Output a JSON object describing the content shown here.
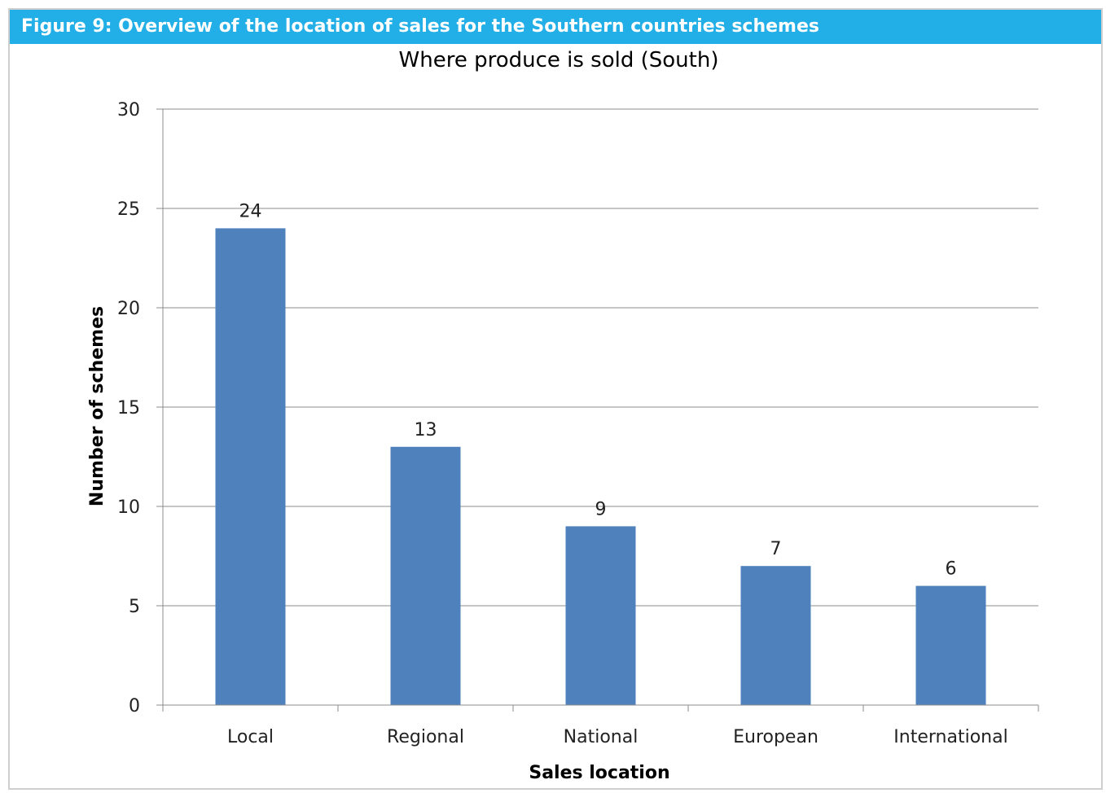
{
  "figure": {
    "caption": "Figure 9: Overview of the location of sales for the Southern countries schemes"
  },
  "chart_data": {
    "type": "bar",
    "title": "Where produce is sold (South)",
    "xlabel": "Sales location",
    "ylabel": "Number of schemes",
    "categories": [
      "Local",
      "Regional",
      "National",
      "European",
      "International"
    ],
    "values": [
      24,
      13,
      9,
      7,
      6
    ],
    "ylim": [
      0,
      30
    ],
    "yticks": [
      0,
      5,
      10,
      15,
      20,
      25,
      30
    ],
    "grid": true,
    "legend": "none",
    "bar_color": "#4f81bd"
  }
}
